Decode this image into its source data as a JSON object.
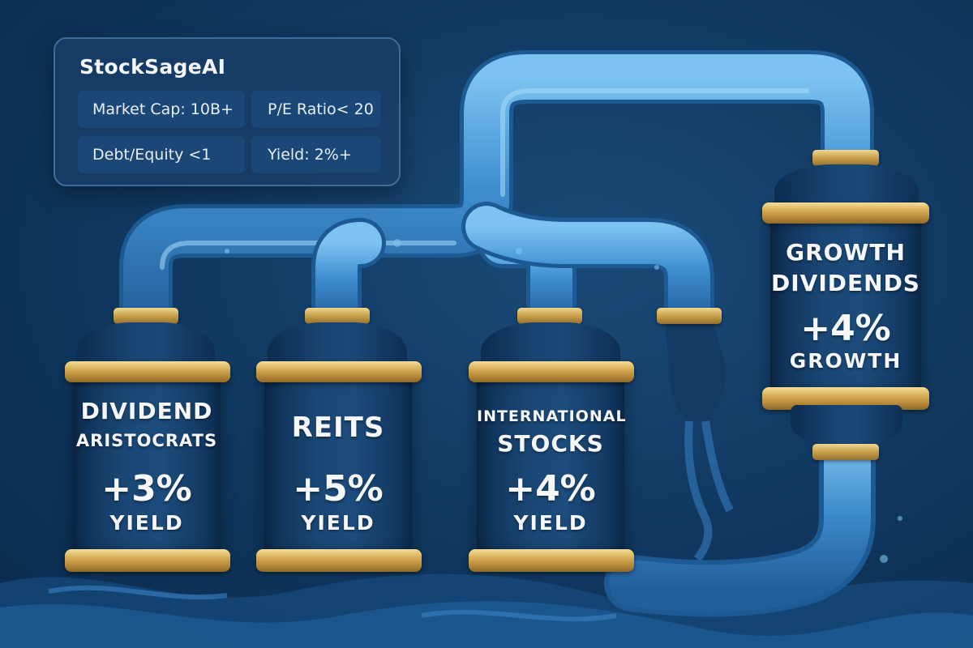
{
  "panel": {
    "title": "StockSageAI",
    "filters": {
      "market_cap": "Market Cap: 10B+",
      "pe_ratio": "P/E Ratio< 20",
      "debt_equity": "Debt/Equity <1",
      "yield": "Yield: 2%+"
    }
  },
  "tanks": {
    "aristocrats": {
      "line1": "DIVIDEND",
      "line2": "ARISTOCRATS",
      "value": "+3%",
      "unit": "YIELD"
    },
    "reits": {
      "line1": "REITS",
      "value": "+5%",
      "unit": "YIELD"
    },
    "international": {
      "line1": "INTERNATIONAL",
      "line2": "STOCKS",
      "value": "+4%",
      "unit": "YIELD"
    },
    "growth": {
      "line1": "GROWTH",
      "line2": "DIVIDENDS",
      "value": "+4%",
      "unit": "GROWTH"
    }
  },
  "colors": {
    "background": "#113a63",
    "pipe": "#3f8fd0",
    "gold": "#d9b15a",
    "tank": "#1a4775"
  }
}
